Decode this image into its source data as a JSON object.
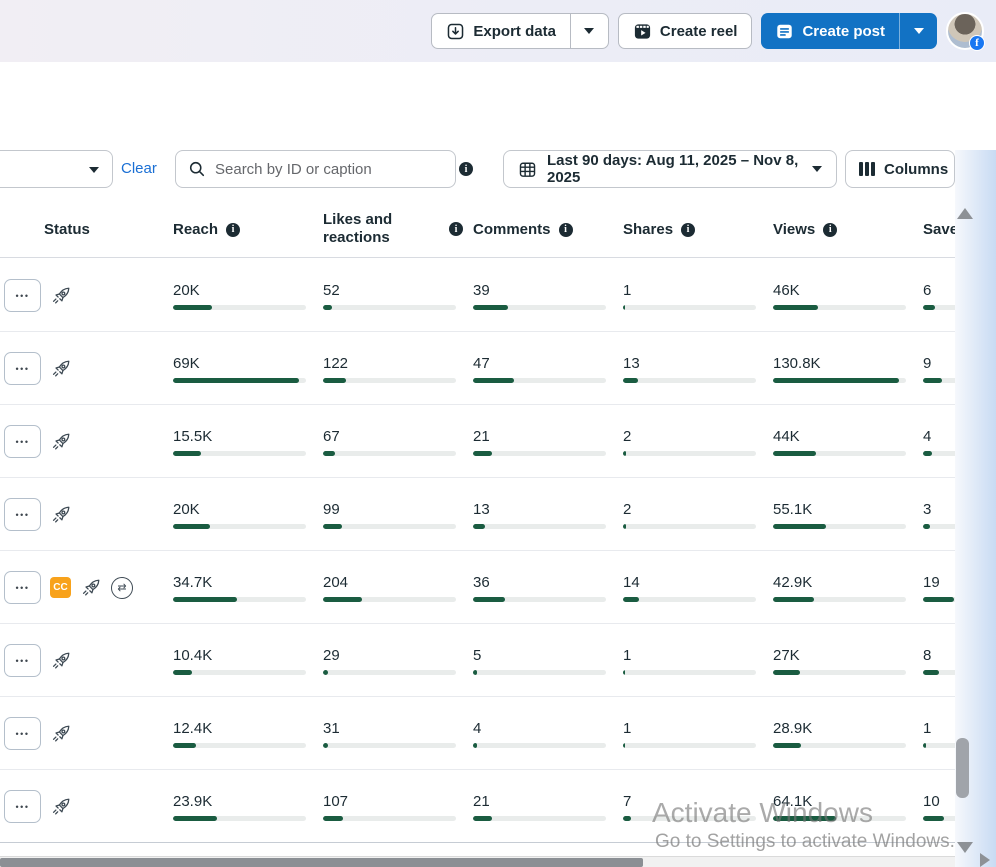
{
  "topbar": {
    "export_label": "Export data",
    "create_reel_label": "Create reel",
    "create_post_label": "Create post"
  },
  "filters": {
    "clear_label": "Clear",
    "search_placeholder": "Search by ID or caption",
    "date_range_label": "Last 90 days: Aug 11, 2025 – Nov 8, 2025",
    "columns_label": "Columns"
  },
  "table": {
    "columns": [
      {
        "key": "status",
        "label": "Status"
      },
      {
        "key": "reach",
        "label": "Reach"
      },
      {
        "key": "likes",
        "label": "Likes and reactions"
      },
      {
        "key": "comments",
        "label": "Comments"
      },
      {
        "key": "shares",
        "label": "Shares"
      },
      {
        "key": "views",
        "label": "Views"
      },
      {
        "key": "saves",
        "label": "Saves"
      }
    ],
    "rows": [
      {
        "has_cc": false,
        "has_crosspost": false,
        "reach": {
          "v": "20K",
          "f": 0.29
        },
        "likes": {
          "v": "52",
          "f": 0.07
        },
        "comments": {
          "v": "39",
          "f": 0.26
        },
        "shares": {
          "v": "1",
          "f": 0.012
        },
        "views": {
          "v": "46K",
          "f": 0.34
        },
        "saves": {
          "v": "6",
          "f": 0.09
        }
      },
      {
        "has_cc": false,
        "has_crosspost": false,
        "reach": {
          "v": "69K",
          "f": 0.95
        },
        "likes": {
          "v": "122",
          "f": 0.17
        },
        "comments": {
          "v": "47",
          "f": 0.31
        },
        "shares": {
          "v": "13",
          "f": 0.11
        },
        "views": {
          "v": "130.8K",
          "f": 0.95
        },
        "saves": {
          "v": "9",
          "f": 0.14
        }
      },
      {
        "has_cc": false,
        "has_crosspost": false,
        "reach": {
          "v": "15.5K",
          "f": 0.21
        },
        "likes": {
          "v": "67",
          "f": 0.09
        },
        "comments": {
          "v": "21",
          "f": 0.14
        },
        "shares": {
          "v": "2",
          "f": 0.02
        },
        "views": {
          "v": "44K",
          "f": 0.32
        },
        "saves": {
          "v": "4",
          "f": 0.065
        }
      },
      {
        "has_cc": false,
        "has_crosspost": false,
        "reach": {
          "v": "20K",
          "f": 0.28
        },
        "likes": {
          "v": "99",
          "f": 0.14
        },
        "comments": {
          "v": "13",
          "f": 0.09
        },
        "shares": {
          "v": "2",
          "f": 0.02
        },
        "views": {
          "v": "55.1K",
          "f": 0.4
        },
        "saves": {
          "v": "3",
          "f": 0.05
        }
      },
      {
        "has_cc": true,
        "has_crosspost": true,
        "reach": {
          "v": "34.7K",
          "f": 0.48
        },
        "likes": {
          "v": "204",
          "f": 0.29
        },
        "comments": {
          "v": "36",
          "f": 0.24
        },
        "shares": {
          "v": "14",
          "f": 0.12
        },
        "views": {
          "v": "42.9K",
          "f": 0.31
        },
        "saves": {
          "v": "19",
          "f": 0.23
        }
      },
      {
        "has_cc": false,
        "has_crosspost": false,
        "reach": {
          "v": "10.4K",
          "f": 0.14
        },
        "likes": {
          "v": "29",
          "f": 0.04
        },
        "comments": {
          "v": "5",
          "f": 0.03
        },
        "shares": {
          "v": "1",
          "f": 0.012
        },
        "views": {
          "v": "27K",
          "f": 0.2
        },
        "saves": {
          "v": "8",
          "f": 0.12
        }
      },
      {
        "has_cc": false,
        "has_crosspost": false,
        "reach": {
          "v": "12.4K",
          "f": 0.17
        },
        "likes": {
          "v": "31",
          "f": 0.04
        },
        "comments": {
          "v": "4",
          "f": 0.03
        },
        "shares": {
          "v": "1",
          "f": 0.012
        },
        "views": {
          "v": "28.9K",
          "f": 0.21
        },
        "saves": {
          "v": "1",
          "f": 0.02
        }
      },
      {
        "has_cc": false,
        "has_crosspost": false,
        "reach": {
          "v": "23.9K",
          "f": 0.33
        },
        "likes": {
          "v": "107",
          "f": 0.15
        },
        "comments": {
          "v": "21",
          "f": 0.14
        },
        "shares": {
          "v": "7",
          "f": 0.06
        },
        "views": {
          "v": "64.1K",
          "f": 0.47
        },
        "saves": {
          "v": "10",
          "f": 0.155
        }
      }
    ]
  },
  "watermark": {
    "line1": "Activate Windows",
    "line2": "Go to Settings to activate Windows."
  },
  "colors": {
    "accent_blue": "#1272c4",
    "link_blue": "#1a6fd4",
    "bar_green": "#1a5c41",
    "bar_track": "#e9eceb",
    "cc_badge_orange": "#f8a21b"
  }
}
